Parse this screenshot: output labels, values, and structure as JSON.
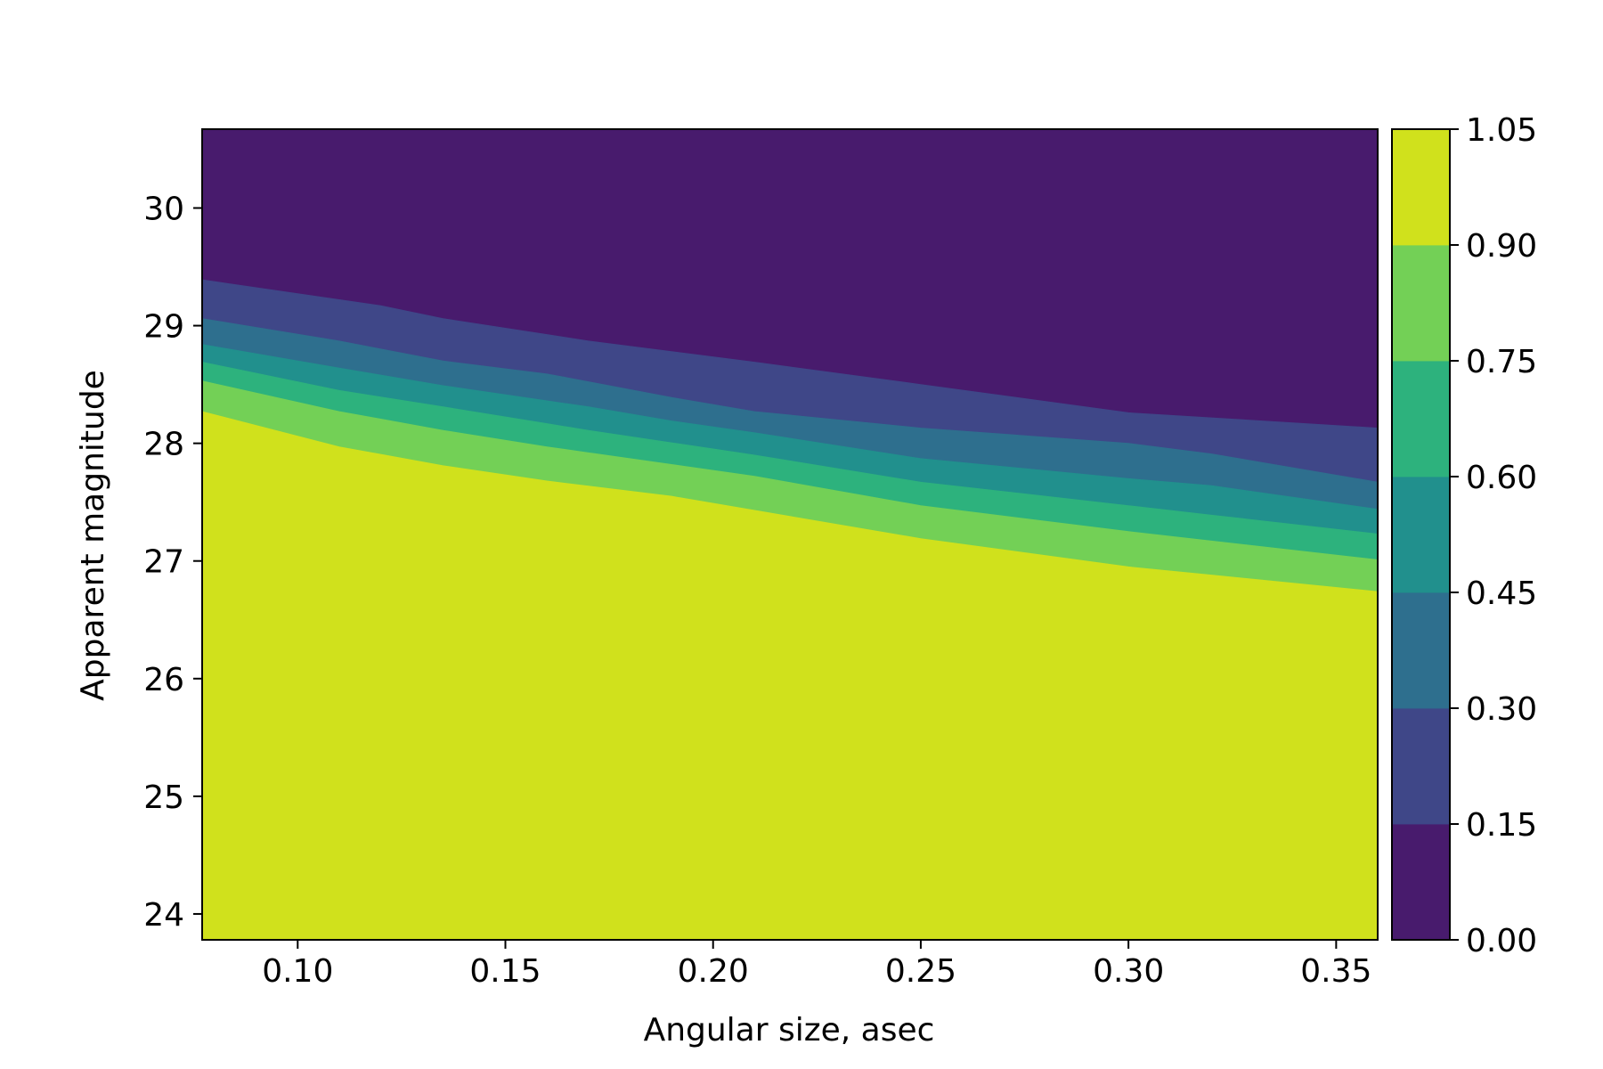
{
  "chart_data": {
    "type": "contourf",
    "title": "",
    "xlabel": "Angular size, asec",
    "ylabel": "Apparent magnitude",
    "xlim": [
      0.077,
      0.36
    ],
    "ylim": [
      23.78,
      30.67
    ],
    "xticks": [
      {
        "value": 0.1,
        "label": "0.10"
      },
      {
        "value": 0.15,
        "label": "0.15"
      },
      {
        "value": 0.2,
        "label": "0.20"
      },
      {
        "value": 0.25,
        "label": "0.25"
      },
      {
        "value": 0.3,
        "label": "0.30"
      },
      {
        "value": 0.35,
        "label": "0.35"
      }
    ],
    "yticks": [
      {
        "value": 24,
        "label": "24"
      },
      {
        "value": 25,
        "label": "25"
      },
      {
        "value": 26,
        "label": "26"
      },
      {
        "value": 27,
        "label": "27"
      },
      {
        "value": 28,
        "label": "28"
      },
      {
        "value": 29,
        "label": "29"
      },
      {
        "value": 30,
        "label": "30"
      }
    ],
    "grid": false,
    "colorbar": {
      "levels": [
        {
          "value": 0.0,
          "label": "0.00"
        },
        {
          "value": 0.15,
          "label": "0.15"
        },
        {
          "value": 0.3,
          "label": "0.30"
        },
        {
          "value": 0.45,
          "label": "0.45"
        },
        {
          "value": 0.6,
          "label": "0.60"
        },
        {
          "value": 0.75,
          "label": "0.75"
        },
        {
          "value": 0.9,
          "label": "0.90"
        },
        {
          "value": 1.05,
          "label": "1.05"
        }
      ],
      "colors": [
        "#481b6d",
        "#3f4788",
        "#2e6f8e",
        "#21908d",
        "#2db27d",
        "#73d056",
        "#d0e11c"
      ]
    },
    "contour_lines": [
      {
        "level": 0.15,
        "points": [
          [
            0.077,
            29.39
          ],
          [
            0.12,
            29.17
          ],
          [
            0.135,
            29.06
          ],
          [
            0.17,
            28.87
          ],
          [
            0.21,
            28.69
          ],
          [
            0.25,
            28.5
          ],
          [
            0.3,
            28.26
          ],
          [
            0.36,
            28.13
          ]
        ]
      },
      {
        "level": 0.3,
        "points": [
          [
            0.077,
            29.06
          ],
          [
            0.11,
            28.87
          ],
          [
            0.135,
            28.7
          ],
          [
            0.16,
            28.59
          ],
          [
            0.19,
            28.39
          ],
          [
            0.21,
            28.27
          ],
          [
            0.25,
            28.13
          ],
          [
            0.3,
            28.0
          ],
          [
            0.32,
            27.91
          ],
          [
            0.36,
            27.67
          ]
        ]
      },
      {
        "level": 0.45,
        "points": [
          [
            0.077,
            28.84
          ],
          [
            0.11,
            28.64
          ],
          [
            0.135,
            28.49
          ],
          [
            0.17,
            28.31
          ],
          [
            0.19,
            28.19
          ],
          [
            0.21,
            28.09
          ],
          [
            0.25,
            27.87
          ],
          [
            0.3,
            27.7
          ],
          [
            0.32,
            27.64
          ],
          [
            0.36,
            27.44
          ]
        ]
      },
      {
        "level": 0.6,
        "points": [
          [
            0.077,
            28.69
          ],
          [
            0.11,
            28.45
          ],
          [
            0.135,
            28.31
          ],
          [
            0.17,
            28.11
          ],
          [
            0.21,
            27.9
          ],
          [
            0.25,
            27.67
          ],
          [
            0.3,
            27.47
          ],
          [
            0.36,
            27.23
          ]
        ]
      },
      {
        "level": 0.75,
        "points": [
          [
            0.077,
            28.53
          ],
          [
            0.11,
            28.27
          ],
          [
            0.135,
            28.11
          ],
          [
            0.16,
            27.97
          ],
          [
            0.21,
            27.72
          ],
          [
            0.25,
            27.47
          ],
          [
            0.3,
            27.25
          ],
          [
            0.36,
            27.01
          ]
        ]
      },
      {
        "level": 0.9,
        "points": [
          [
            0.077,
            28.27
          ],
          [
            0.11,
            27.97
          ],
          [
            0.135,
            27.81
          ],
          [
            0.16,
            27.68
          ],
          [
            0.19,
            27.55
          ],
          [
            0.25,
            27.19
          ],
          [
            0.3,
            26.95
          ],
          [
            0.36,
            26.74
          ]
        ]
      }
    ]
  }
}
